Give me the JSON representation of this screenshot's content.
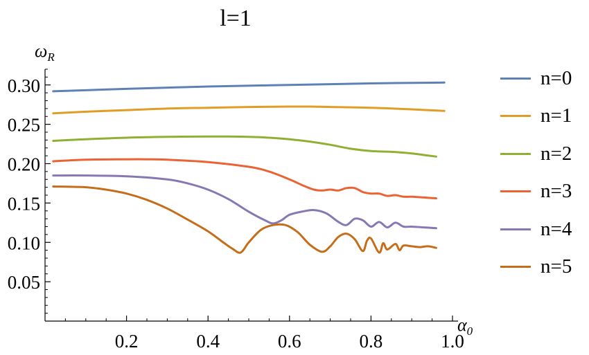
{
  "chart_data": {
    "type": "line",
    "title": "l=1",
    "xlabel": "α",
    "xlabel_sub": "0",
    "ylabel": "ω",
    "ylabel_sub": "R",
    "xlim": [
      0,
      1.0
    ],
    "ylim": [
      0.0,
      0.32
    ],
    "xticks": [
      0.2,
      0.4,
      0.6,
      0.8,
      1.0
    ],
    "xtick_labels": [
      "0.2",
      "0.4",
      "0.6",
      "0.8",
      "1.0"
    ],
    "yticks": [
      0.05,
      0.1,
      0.15,
      0.2,
      0.25,
      0.3
    ],
    "ytick_labels": [
      "0.05",
      "0.10",
      "0.15",
      "0.20",
      "0.25",
      "0.30"
    ],
    "grid": false,
    "legend_position": "right",
    "series": [
      {
        "name": "n=0",
        "color": "#5e81b5",
        "x": [
          0.02,
          0.2,
          0.4,
          0.6,
          0.8,
          0.98
        ],
        "y": [
          0.292,
          0.295,
          0.298,
          0.3,
          0.302,
          0.303
        ]
      },
      {
        "name": "n=1",
        "color": "#e19c24",
        "x": [
          0.02,
          0.1,
          0.2,
          0.3,
          0.4,
          0.5,
          0.6,
          0.65,
          0.7,
          0.8,
          0.9,
          0.98
        ],
        "y": [
          0.264,
          0.266,
          0.268,
          0.27,
          0.271,
          0.272,
          0.2725,
          0.2725,
          0.272,
          0.271,
          0.269,
          0.267
        ]
      },
      {
        "name": "n=2",
        "color": "#8fb032",
        "x": [
          0.02,
          0.1,
          0.2,
          0.3,
          0.4,
          0.45,
          0.5,
          0.55,
          0.6,
          0.65,
          0.7,
          0.75,
          0.8,
          0.85,
          0.9,
          0.96
        ],
        "y": [
          0.229,
          0.231,
          0.233,
          0.234,
          0.2345,
          0.2345,
          0.234,
          0.233,
          0.231,
          0.228,
          0.224,
          0.219,
          0.216,
          0.215,
          0.213,
          0.209
        ]
      },
      {
        "name": "n=3",
        "color": "#eb6235",
        "x": [
          0.02,
          0.1,
          0.2,
          0.25,
          0.3,
          0.4,
          0.5,
          0.55,
          0.6,
          0.63,
          0.66,
          0.68,
          0.7,
          0.72,
          0.74,
          0.76,
          0.78,
          0.8,
          0.82,
          0.84,
          0.86,
          0.88,
          0.9,
          0.93,
          0.96
        ],
        "y": [
          0.203,
          0.205,
          0.2055,
          0.2055,
          0.205,
          0.202,
          0.196,
          0.19,
          0.18,
          0.173,
          0.167,
          0.166,
          0.167,
          0.166,
          0.169,
          0.169,
          0.164,
          0.162,
          0.162,
          0.159,
          0.16,
          0.158,
          0.158,
          0.157,
          0.156
        ]
      },
      {
        "name": "n=4",
        "color": "#8778b3",
        "x": [
          0.02,
          0.1,
          0.2,
          0.3,
          0.35,
          0.4,
          0.45,
          0.5,
          0.54,
          0.56,
          0.58,
          0.6,
          0.63,
          0.66,
          0.69,
          0.72,
          0.74,
          0.76,
          0.78,
          0.8,
          0.82,
          0.84,
          0.86,
          0.88,
          0.9,
          0.93,
          0.96
        ],
        "y": [
          0.185,
          0.185,
          0.184,
          0.18,
          0.175,
          0.167,
          0.155,
          0.139,
          0.128,
          0.124,
          0.128,
          0.135,
          0.139,
          0.141,
          0.137,
          0.126,
          0.122,
          0.13,
          0.128,
          0.12,
          0.126,
          0.119,
          0.125,
          0.12,
          0.12,
          0.119,
          0.118
        ]
      },
      {
        "name": "n=5",
        "color": "#c56e1a",
        "x": [
          0.02,
          0.1,
          0.15,
          0.2,
          0.25,
          0.3,
          0.35,
          0.4,
          0.44,
          0.46,
          0.48,
          0.5,
          0.53,
          0.56,
          0.59,
          0.62,
          0.65,
          0.68,
          0.7,
          0.72,
          0.74,
          0.76,
          0.78,
          0.79,
          0.8,
          0.82,
          0.83,
          0.84,
          0.86,
          0.87,
          0.88,
          0.9,
          0.92,
          0.94,
          0.96
        ],
        "y": [
          0.171,
          0.17,
          0.167,
          0.162,
          0.154,
          0.143,
          0.129,
          0.114,
          0.099,
          0.092,
          0.087,
          0.1,
          0.116,
          0.122,
          0.122,
          0.113,
          0.097,
          0.088,
          0.095,
          0.107,
          0.111,
          0.104,
          0.089,
          0.102,
          0.105,
          0.087,
          0.099,
          0.091,
          0.098,
          0.09,
          0.096,
          0.095,
          0.094,
          0.095,
          0.093
        ]
      }
    ]
  }
}
